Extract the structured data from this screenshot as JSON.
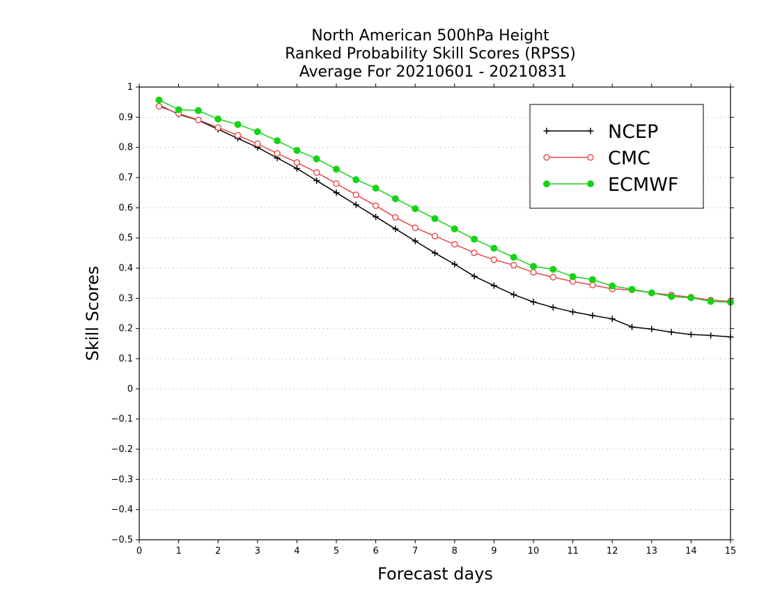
{
  "chart_data": {
    "type": "line",
    "title_lines": [
      "North American 500hPa Height",
      "Ranked Probability Skill Scores (RPSS)",
      "Average For 20210601 - 20210831"
    ],
    "xlabel": "Forecast days",
    "ylabel": "Skill Scores",
    "xlim": [
      0,
      15
    ],
    "ylim": [
      -0.5,
      1
    ],
    "x_ticks": [
      "0",
      "1",
      "2",
      "3",
      "4",
      "5",
      "6",
      "7",
      "8",
      "9",
      "10",
      "11",
      "12",
      "13",
      "14",
      "15"
    ],
    "y_ticks": [
      "−0.5",
      "−0.4",
      "−0.3",
      "−0.2",
      "−0.1",
      "0",
      "0.1",
      "0.2",
      "0.3",
      "0.4",
      "0.5",
      "0.6",
      "0.7",
      "0.8",
      "0.9",
      "1"
    ],
    "grid": "horizontal dotted",
    "legend_position": "top-right",
    "x": [
      0.5,
      1,
      1.5,
      2,
      2.5,
      3,
      3.5,
      4,
      4.5,
      5,
      5.5,
      6,
      6.5,
      7,
      7.5,
      8,
      8.5,
      9,
      9.5,
      10,
      10.5,
      11,
      11.5,
      12,
      12.5,
      13,
      13.5,
      14,
      14.5,
      15
    ],
    "series": [
      {
        "name": "NCEP",
        "color": "#000000",
        "marker": "plus",
        "values": [
          0.94,
          0.91,
          0.89,
          0.86,
          0.83,
          0.8,
          0.765,
          0.73,
          0.69,
          0.65,
          0.61,
          0.57,
          0.53,
          0.49,
          0.45,
          0.413,
          0.373,
          0.342,
          0.312,
          0.288,
          0.27,
          0.255,
          0.243,
          0.232,
          0.205,
          0.198,
          0.188,
          0.18,
          0.177,
          0.172
        ]
      },
      {
        "name": "CMC",
        "color": "#e8474a",
        "marker": "open-circle",
        "values": [
          0.936,
          0.912,
          0.891,
          0.866,
          0.84,
          0.812,
          0.78,
          0.75,
          0.717,
          0.68,
          0.643,
          0.607,
          0.568,
          0.534,
          0.506,
          0.479,
          0.451,
          0.428,
          0.41,
          0.386,
          0.37,
          0.356,
          0.344,
          0.331,
          0.328,
          0.318,
          0.311,
          0.304,
          0.294,
          0.29
        ]
      },
      {
        "name": "ECMWF",
        "color": "#17d317",
        "marker": "filled-circle",
        "values": [
          0.957,
          0.925,
          0.922,
          0.894,
          0.876,
          0.852,
          0.822,
          0.79,
          0.762,
          0.728,
          0.693,
          0.665,
          0.63,
          0.597,
          0.564,
          0.53,
          0.496,
          0.466,
          0.436,
          0.406,
          0.396,
          0.372,
          0.362,
          0.341,
          0.33,
          0.318,
          0.306,
          0.302,
          0.29,
          0.287
        ]
      }
    ]
  }
}
